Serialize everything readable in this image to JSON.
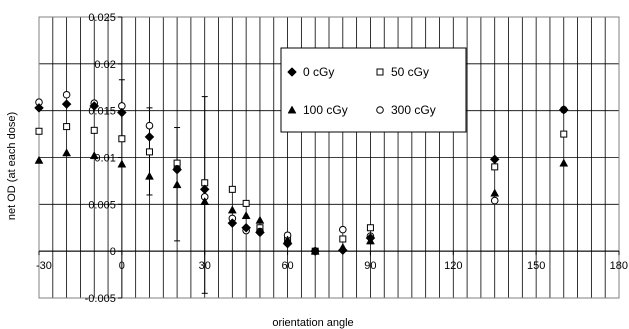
{
  "chart_data": {
    "type": "scatter",
    "xlabel": "orientation angle",
    "ylabel": "net OD (at each dose)",
    "xlim": [
      -30,
      180
    ],
    "ylim": [
      -0.005,
      0.025
    ],
    "x_ticks": [
      -30,
      0,
      30,
      60,
      90,
      120,
      150,
      180
    ],
    "x_tick_labels": [
      "-30",
      "0",
      "30",
      "60",
      "90",
      "120",
      "150",
      "180"
    ],
    "y_ticks": [
      -0.005,
      0,
      0.005,
      0.01,
      0.015,
      0.02,
      0.025
    ],
    "y_tick_labels": [
      "-0.005",
      "0",
      "0.005",
      "0.01",
      "0.015",
      "0.02",
      "0.025"
    ],
    "x_minor_gridline_step": 5,
    "y_major_gridlines": true,
    "legend_position": "center-top",
    "series": [
      {
        "name": "0 cGy",
        "marker": "diamond-filled",
        "color": "#000000",
        "points": [
          {
            "x": -30,
            "y": 0.0153
          },
          {
            "x": -20,
            "y": 0.0157
          },
          {
            "x": -10,
            "y": 0.0155
          },
          {
            "x": 0,
            "y": 0.0148
          },
          {
            "x": 10,
            "y": 0.0122
          },
          {
            "x": 20,
            "y": 0.0087
          },
          {
            "x": 30,
            "y": 0.0066
          },
          {
            "x": 40,
            "y": 0.003
          },
          {
            "x": 45,
            "y": 0.0025
          },
          {
            "x": 50,
            "y": 0.002
          },
          {
            "x": 60,
            "y": 0.0008
          },
          {
            "x": 70,
            "y": 0.0
          },
          {
            "x": 80,
            "y": 0.0001
          },
          {
            "x": 90,
            "y": 0.0014
          },
          {
            "x": 135,
            "y": 0.0098
          },
          {
            "x": 160,
            "y": 0.0151
          }
        ]
      },
      {
        "name": "50 cGy",
        "marker": "square-open",
        "color": "#000000",
        "points": [
          {
            "x": -30,
            "y": 0.0128
          },
          {
            "x": -20,
            "y": 0.0133
          },
          {
            "x": -10,
            "y": 0.0129
          },
          {
            "x": 0,
            "y": 0.012
          },
          {
            "x": 10,
            "y": 0.0106
          },
          {
            "x": 20,
            "y": 0.0094
          },
          {
            "x": 30,
            "y": 0.0073
          },
          {
            "x": 40,
            "y": 0.0066
          },
          {
            "x": 45,
            "y": 0.0051
          },
          {
            "x": 50,
            "y": 0.0025
          },
          {
            "x": 60,
            "y": 0.0012
          },
          {
            "x": 70,
            "y": 0.0
          },
          {
            "x": 80,
            "y": 0.0013
          },
          {
            "x": 90,
            "y": 0.0025
          },
          {
            "x": 135,
            "y": 0.009
          },
          {
            "x": 160,
            "y": 0.0125
          }
        ]
      },
      {
        "name": "100 cGy",
        "marker": "triangle-filled",
        "color": "#000000",
        "points": [
          {
            "x": -30,
            "y": 0.0097
          },
          {
            "x": -20,
            "y": 0.0105
          },
          {
            "x": -10,
            "y": 0.0102
          },
          {
            "x": 0,
            "y": 0.0093
          },
          {
            "x": 10,
            "y": 0.008
          },
          {
            "x": 20,
            "y": 0.0071
          },
          {
            "x": 30,
            "y": 0.0053
          },
          {
            "x": 40,
            "y": 0.0044
          },
          {
            "x": 45,
            "y": 0.0038
          },
          {
            "x": 50,
            "y": 0.0033
          },
          {
            "x": 60,
            "y": 0.0012
          },
          {
            "x": 70,
            "y": 0.0
          },
          {
            "x": 80,
            "y": 0.0004
          },
          {
            "x": 90,
            "y": 0.0011
          },
          {
            "x": 135,
            "y": 0.0062
          },
          {
            "x": 160,
            "y": 0.0094
          }
        ]
      },
      {
        "name": "300 cGy",
        "marker": "circle-open",
        "color": "#000000",
        "points": [
          {
            "x": -30,
            "y": 0.0159
          },
          {
            "x": -20,
            "y": 0.0167
          },
          {
            "x": -10,
            "y": 0.0158
          },
          {
            "x": 0,
            "y": 0.0155
          },
          {
            "x": 10,
            "y": 0.0134
          },
          {
            "x": 20,
            "y": 0.0088
          },
          {
            "x": 30,
            "y": 0.0058
          },
          {
            "x": 40,
            "y": 0.0035
          },
          {
            "x": 45,
            "y": 0.0022
          },
          {
            "x": 50,
            "y": 0.0021
          },
          {
            "x": 60,
            "y": 0.0017
          },
          {
            "x": 70,
            "y": 0.0
          },
          {
            "x": 80,
            "y": 0.0023
          },
          {
            "x": 90,
            "y": 0.0016
          },
          {
            "x": 135,
            "y": 0.0054
          },
          {
            "x": 160,
            "y": 0.0151
          }
        ]
      }
    ],
    "error_bars": [
      {
        "x": 0,
        "low": 0.0118,
        "high": 0.0183
      },
      {
        "x": 10,
        "low": 0.006,
        "high": 0.0153
      },
      {
        "x": 20,
        "low": 0.0011,
        "high": 0.0132
      },
      {
        "x": 30,
        "low": -0.0045,
        "high": 0.0165
      }
    ]
  }
}
